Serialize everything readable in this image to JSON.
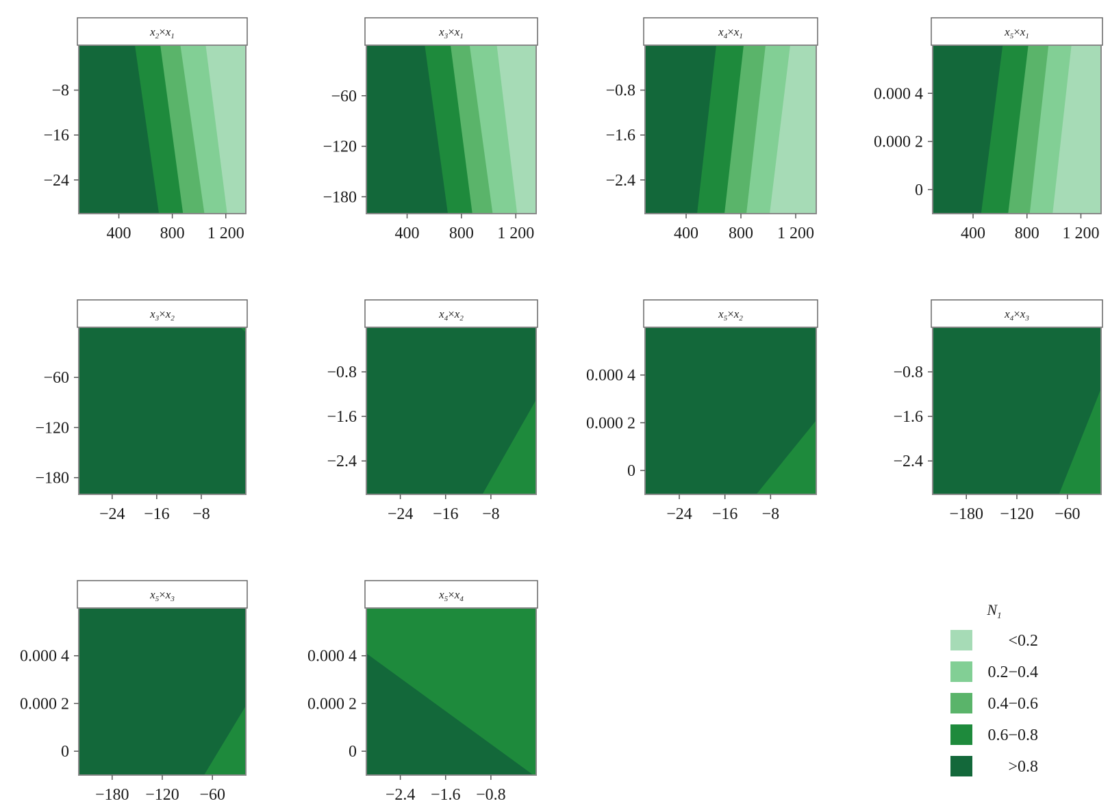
{
  "colors": {
    "lt02": "#a6dbb6",
    "b0204": "#82cf95",
    "b0406": "#5ab46a",
    "b0608": "#1e8a3c",
    "gt08": "#13683a",
    "frame": "#888888",
    "axis": "#555555"
  },
  "legend": {
    "title": "N",
    "title_sub": "1",
    "entries": [
      {
        "label": "<0.2",
        "color": "#a6dbb6"
      },
      {
        "label": "0.2−0.4",
        "color": "#82cf95"
      },
      {
        "label": "0.4−0.6",
        "color": "#5ab46a"
      },
      {
        "label": "0.6−0.8",
        "color": "#1e8a3c"
      },
      {
        "label": ">0.8",
        "color": "#13683a"
      }
    ]
  },
  "chart_data": [
    {
      "type": "heatmap",
      "title": "x2×x1",
      "title_parts": {
        "a": "x",
        "a_sub": "2",
        "b": "x",
        "b_sub": "1"
      },
      "xlim": [
        100,
        1350
      ],
      "ylim": [
        -30,
        0
      ],
      "xticks": [
        {
          "v": 400,
          "label": "400"
        },
        {
          "v": 800,
          "label": "800"
        },
        {
          "v": 1200,
          "label": "1 200"
        }
      ],
      "yticks": [
        {
          "v": -8,
          "label": "−8"
        },
        {
          "v": -16,
          "label": "−16"
        },
        {
          "v": -24,
          "label": "−24"
        }
      ],
      "boundaries": [
        [
          [
            520,
            0
          ],
          [
            700,
            -30
          ]
        ],
        [
          [
            710,
            0
          ],
          [
            880,
            -30
          ]
        ],
        [
          [
            860,
            0
          ],
          [
            1040,
            -30
          ]
        ],
        [
          [
            1050,
            0
          ],
          [
            1210,
            -30
          ]
        ]
      ]
    },
    {
      "type": "heatmap",
      "title": "x3×x1",
      "title_parts": {
        "a": "x",
        "a_sub": "3",
        "b": "x",
        "b_sub": "1"
      },
      "xlim": [
        100,
        1350
      ],
      "ylim": [
        -200,
        0
      ],
      "xticks": [
        {
          "v": 400,
          "label": "400"
        },
        {
          "v": 800,
          "label": "800"
        },
        {
          "v": 1200,
          "label": "1 200"
        }
      ],
      "yticks": [
        {
          "v": -60,
          "label": "−60"
        },
        {
          "v": -120,
          "label": "−120"
        },
        {
          "v": -180,
          "label": "−180"
        }
      ],
      "boundaries": [
        [
          [
            530,
            0
          ],
          [
            700,
            -200
          ]
        ],
        [
          [
            720,
            0
          ],
          [
            880,
            -200
          ]
        ],
        [
          [
            860,
            0
          ],
          [
            1030,
            -200
          ]
        ],
        [
          [
            1060,
            0
          ],
          [
            1210,
            -200
          ]
        ]
      ]
    },
    {
      "type": "heatmap",
      "title": "x4×x1",
      "title_parts": {
        "a": "x",
        "a_sub": "4",
        "b": "x",
        "b_sub": "1"
      },
      "xlim": [
        100,
        1350
      ],
      "ylim": [
        -3,
        0
      ],
      "xticks": [
        {
          "v": 400,
          "label": "400"
        },
        {
          "v": 800,
          "label": "800"
        },
        {
          "v": 1200,
          "label": "1 200"
        }
      ],
      "yticks": [
        {
          "v": -0.8,
          "label": "−0.8"
        },
        {
          "v": -1.6,
          "label": "−1.6"
        },
        {
          "v": -2.4,
          "label": "−2.4"
        }
      ],
      "boundaries": [
        [
          [
            620,
            0
          ],
          [
            480,
            -3
          ]
        ],
        [
          [
            820,
            0
          ],
          [
            680,
            -3
          ]
        ],
        [
          [
            980,
            0
          ],
          [
            840,
            -3
          ]
        ],
        [
          [
            1160,
            0
          ],
          [
            1010,
            -3
          ]
        ]
      ]
    },
    {
      "type": "heatmap",
      "title": "x5×x1",
      "title_parts": {
        "a": "x",
        "a_sub": "5",
        "b": "x",
        "b_sub": "1"
      },
      "xlim": [
        100,
        1350
      ],
      "ylim": [
        -0.0001,
        0.0006
      ],
      "xticks": [
        {
          "v": 400,
          "label": "400"
        },
        {
          "v": 800,
          "label": "800"
        },
        {
          "v": 1200,
          "label": "1 200"
        }
      ],
      "yticks": [
        {
          "v": 0.0004,
          "label": "0.000 4"
        },
        {
          "v": 0.0002,
          "label": "0.000 2"
        },
        {
          "v": 0,
          "label": "0"
        }
      ],
      "boundaries": [
        [
          [
            620,
            0.0006
          ],
          [
            460,
            -0.0001
          ]
        ],
        [
          [
            810,
            0.0006
          ],
          [
            660,
            -0.0001
          ]
        ],
        [
          [
            960,
            0.0006
          ],
          [
            820,
            -0.0001
          ]
        ],
        [
          [
            1130,
            0.0006
          ],
          [
            990,
            -0.0001
          ]
        ]
      ]
    },
    {
      "type": "heatmap",
      "title": "x3×x2",
      "title_parts": {
        "a": "x",
        "a_sub": "3",
        "b": "x",
        "b_sub": "2"
      },
      "xlim": [
        -30,
        0
      ],
      "ylim": [
        -200,
        0
      ],
      "xticks": [
        {
          "v": -24,
          "label": "−24"
        },
        {
          "v": -16,
          "label": "−16"
        },
        {
          "v": -8,
          "label": "−8"
        }
      ],
      "yticks": [
        {
          "v": -60,
          "label": "−60"
        },
        {
          "v": -120,
          "label": "−120"
        },
        {
          "v": -180,
          "label": "−180"
        }
      ],
      "boundaries": [
        [
          [
            -1,
            0
          ],
          [
            0,
            -6
          ]
        ]
      ]
    },
    {
      "type": "heatmap",
      "title": "x4×x2",
      "title_parts": {
        "a": "x",
        "a_sub": "4",
        "b": "x",
        "b_sub": "2"
      },
      "xlim": [
        -30,
        0
      ],
      "ylim": [
        -3,
        0
      ],
      "xticks": [
        {
          "v": -24,
          "label": "−24"
        },
        {
          "v": -16,
          "label": "−16"
        },
        {
          "v": -8,
          "label": "−8"
        }
      ],
      "yticks": [
        {
          "v": -0.8,
          "label": "−0.8"
        },
        {
          "v": -1.6,
          "label": "−1.6"
        },
        {
          "v": -2.4,
          "label": "−2.4"
        }
      ],
      "boundaries": [
        [
          [
            -9.5,
            -3
          ],
          [
            0,
            -1.3
          ]
        ]
      ]
    },
    {
      "type": "heatmap",
      "title": "x5×x2",
      "title_parts": {
        "a": "x",
        "a_sub": "5",
        "b": "x",
        "b_sub": "2"
      },
      "xlim": [
        -30,
        0
      ],
      "ylim": [
        -0.0001,
        0.0006
      ],
      "xticks": [
        {
          "v": -24,
          "label": "−24"
        },
        {
          "v": -16,
          "label": "−16"
        },
        {
          "v": -8,
          "label": "−8"
        }
      ],
      "yticks": [
        {
          "v": 0.0004,
          "label": "0.000 4"
        },
        {
          "v": 0.0002,
          "label": "0.000 2"
        },
        {
          "v": 0,
          "label": "0"
        }
      ],
      "boundaries": [
        [
          [
            -10.5,
            -0.0001
          ],
          [
            0,
            0.00021
          ]
        ]
      ]
    },
    {
      "type": "heatmap",
      "title": "x4×x3",
      "title_parts": {
        "a": "x",
        "a_sub": "4",
        "b": "x",
        "b_sub": "3"
      },
      "xlim": [
        -220,
        -20
      ],
      "ylim": [
        -3,
        0
      ],
      "xticks": [
        {
          "v": -180,
          "label": "−180"
        },
        {
          "v": -120,
          "label": "−120"
        },
        {
          "v": -60,
          "label": "−60"
        }
      ],
      "yticks": [
        {
          "v": -0.8,
          "label": "−0.8"
        },
        {
          "v": -1.6,
          "label": "−1.6"
        },
        {
          "v": -2.4,
          "label": "−2.4"
        }
      ],
      "boundaries": [
        [
          [
            -70,
            -3
          ],
          [
            -20,
            -1.1
          ]
        ]
      ]
    },
    {
      "type": "heatmap",
      "title": "x5×x3",
      "title_parts": {
        "a": "x",
        "a_sub": "5",
        "b": "x",
        "b_sub": "3"
      },
      "xlim": [
        -220,
        -20
      ],
      "ylim": [
        -0.0001,
        0.0006
      ],
      "xticks": [
        {
          "v": -180,
          "label": "−180"
        },
        {
          "v": -120,
          "label": "−120"
        },
        {
          "v": -60,
          "label": "−60"
        }
      ],
      "yticks": [
        {
          "v": 0.0004,
          "label": "0.000 4"
        },
        {
          "v": 0.0002,
          "label": "0.000 2"
        },
        {
          "v": 0,
          "label": "0"
        }
      ],
      "boundaries": [
        [
          [
            -70,
            -0.0001
          ],
          [
            -20,
            0.00019
          ]
        ]
      ]
    },
    {
      "type": "heatmap",
      "title": "x5×x4",
      "title_parts": {
        "a": "x",
        "a_sub": "5",
        "b": "x",
        "b_sub": "4"
      },
      "xlim": [
        -3,
        0
      ],
      "ylim": [
        -0.0001,
        0.0006
      ],
      "xticks": [
        {
          "v": -2.4,
          "label": "−2.4"
        },
        {
          "v": -1.6,
          "label": "−1.6"
        },
        {
          "v": -0.8,
          "label": "−0.8"
        }
      ],
      "yticks": [
        {
          "v": 0.0004,
          "label": "0.000 4"
        },
        {
          "v": 0.0002,
          "label": "0.000 2"
        },
        {
          "v": 0,
          "label": "0"
        }
      ],
      "boundaries": [
        [
          [
            -3,
            0.00041
          ],
          [
            -0.05,
            -0.0001
          ]
        ]
      ]
    }
  ]
}
